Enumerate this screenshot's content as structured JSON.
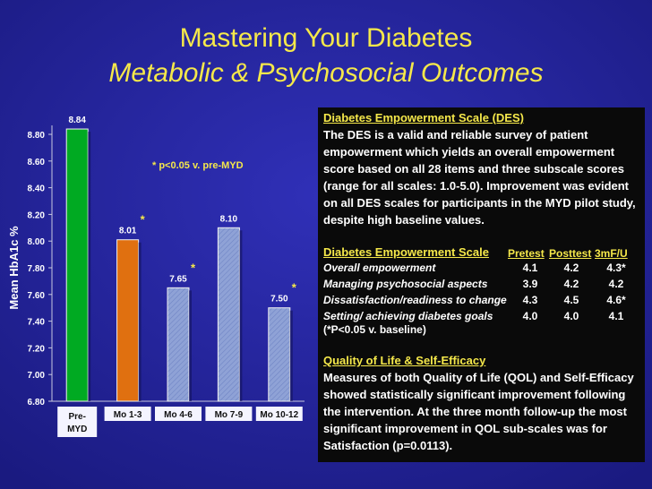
{
  "title": "Mastering Your Diabetes",
  "subtitle": "Metabolic & Psychosocial Outcomes",
  "chart_data": {
    "type": "bar",
    "ylabel": "Mean HbA1c %",
    "xlabel": "",
    "ylim": [
      6.8,
      8.8
    ],
    "yticks": [
      "8.80",
      "8.60",
      "8.40",
      "8.20",
      "8.00",
      "7.80",
      "7.60",
      "7.40",
      "7.20",
      "7.00",
      "6.80"
    ],
    "categories": [
      "Pre-MYD",
      "Mo 1-3",
      "Mo 4-6",
      "Mo 7-9",
      "Mo 10-12"
    ],
    "values": [
      8.84,
      8.01,
      7.65,
      8.1,
      7.5
    ],
    "value_labels": [
      "8.84",
      "8.01",
      "7.65",
      "8.10",
      "7.50"
    ],
    "significant": [
      false,
      true,
      true,
      false,
      true
    ],
    "sig_marker": "*",
    "annotation": "* p<0.05 v. pre-MYD",
    "colors": [
      "#00aa22",
      "#e07010",
      "#8fa2d6",
      "#8fa2d6",
      "#8fa2d6"
    ]
  },
  "panel": {
    "des_heading": "Diabetes Empowerment Scale (DES)",
    "des_text": "The DES is a valid and reliable survey of patient empowerment which yields an overall empowerment score based on all 28 items and three subscale scores (range for all scales: 1.0-5.0).  Improvement was evident on all DES scales for participants in the MYD pilot study, despite high baseline values.",
    "table_heading": "Diabetes Empowerment Scale",
    "col_pretest": "Pretest",
    "col_posttest": "Posttest",
    "col_3mfu": "3mF/U",
    "rows": [
      {
        "label": "Overall empowerment",
        "pre": "4.1",
        "post": "4.2",
        "fu": "4.3*"
      },
      {
        "label": "Managing psychosocial aspects",
        "pre": "3.9",
        "post": "4.2",
        "fu": "4.2"
      },
      {
        "label": "Dissatisfaction/readiness to change",
        "pre": "4.3",
        "post": "4.5",
        "fu": "4.6*"
      },
      {
        "label": "Setting/ achieving diabetes goals",
        "pre": "4.0",
        "post": "4.0",
        "fu": "4.1"
      }
    ],
    "footnote": "(*P<0.05 v. baseline)",
    "qol_heading": "Quality of Life & Self-Efficacy",
    "qol_text": "Measures of both Quality of Life (QOL) and Self-Efficacy showed statistically significant improvement following the intervention.  At the three month follow-up the most significant improvement in QOL sub-scales was for Satisfaction (p=0.0113)."
  }
}
